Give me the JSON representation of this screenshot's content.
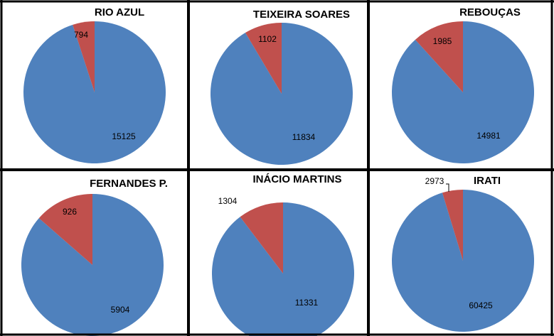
{
  "colors": {
    "slice_major": "#4F81BD",
    "slice_minor": "#C0504D",
    "frame": "#000000",
    "background": "#FFFFFF"
  },
  "chart_data": [
    {
      "type": "pie",
      "title": "RIO AZUL",
      "values": [
        15125,
        794
      ],
      "labels": [
        "15125",
        "794"
      ]
    },
    {
      "type": "pie",
      "title": "TEIXEIRA SOARES",
      "values": [
        11834,
        1102
      ],
      "labels": [
        "11834",
        "1102"
      ]
    },
    {
      "type": "pie",
      "title": "REBOUÇAS",
      "values": [
        14981,
        1985
      ],
      "labels": [
        "14981",
        "1985"
      ]
    },
    {
      "type": "pie",
      "title": "FERNANDES P.",
      "values": [
        5904,
        926
      ],
      "labels": [
        "5904",
        "926"
      ]
    },
    {
      "type": "pie",
      "title": "INÁCIO MARTINS",
      "values": [
        11331,
        1304
      ],
      "labels": [
        "11331",
        "1304"
      ]
    },
    {
      "type": "pie",
      "title": "IRATI",
      "values": [
        60425,
        2973
      ],
      "labels": [
        "60425",
        "2973"
      ]
    }
  ]
}
